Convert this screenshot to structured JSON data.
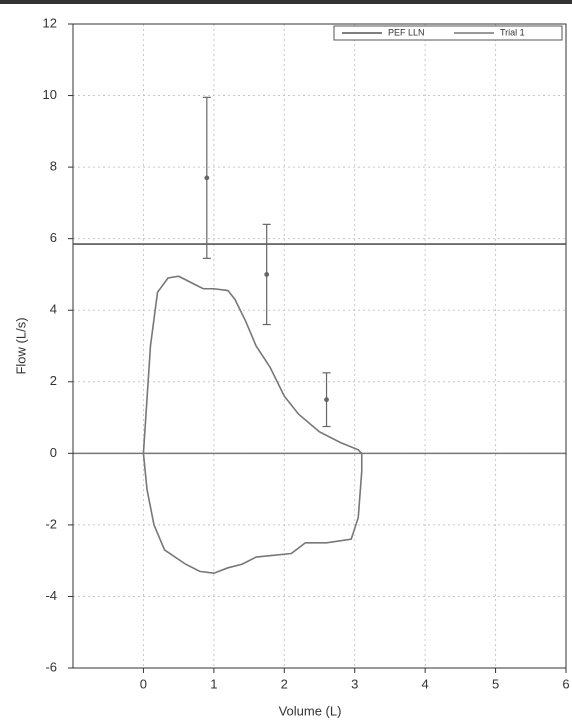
{
  "chart_data": {
    "type": "line",
    "x_label": "Volume (L)",
    "y_label": "Flow (L/s)",
    "xlim": [
      -1,
      6
    ],
    "xticks": [
      0,
      1,
      2,
      3,
      4,
      5,
      6
    ],
    "ylim": [
      -6,
      12
    ],
    "yticks": [
      -6,
      -4,
      -2,
      0,
      2,
      4,
      6,
      8,
      10,
      12
    ],
    "grid": true,
    "legend": "top-right",
    "series": [
      {
        "name": "PEF LLN",
        "color": "#555555",
        "x": [
          -1,
          6
        ],
        "values": [
          5.85,
          5.85
        ]
      },
      {
        "name": "Trial 1",
        "color": "#777777",
        "x": [
          0,
          0.05,
          0.1,
          0.2,
          0.35,
          0.5,
          0.7,
          0.85,
          1.0,
          1.2,
          1.3,
          1.45,
          1.6,
          1.8,
          2.0,
          2.2,
          2.5,
          2.8,
          3.05,
          3.1,
          3.1,
          3.05,
          2.95,
          2.6,
          2.3,
          2.1,
          1.6,
          1.4,
          1.2,
          1.0,
          0.8,
          0.6,
          0.3,
          0.15,
          0.05,
          0
        ],
        "values": [
          0,
          1.5,
          3.0,
          4.5,
          4.9,
          4.95,
          4.75,
          4.6,
          4.6,
          4.55,
          4.3,
          3.7,
          3.0,
          2.4,
          1.6,
          1.1,
          0.6,
          0.3,
          0.1,
          0.0,
          -0.5,
          -1.8,
          -2.4,
          -2.5,
          -2.5,
          -2.8,
          -2.9,
          -3.1,
          -3.2,
          -3.35,
          -3.3,
          -3.1,
          -2.7,
          -2.0,
          -1.0,
          0
        ]
      }
    ],
    "reference_points": {
      "color": "#666666",
      "x": [
        0.9,
        1.75,
        2.6
      ],
      "values": [
        7.7,
        5.0,
        1.5
      ],
      "errors": [
        2.25,
        1.4,
        0.75
      ]
    }
  }
}
